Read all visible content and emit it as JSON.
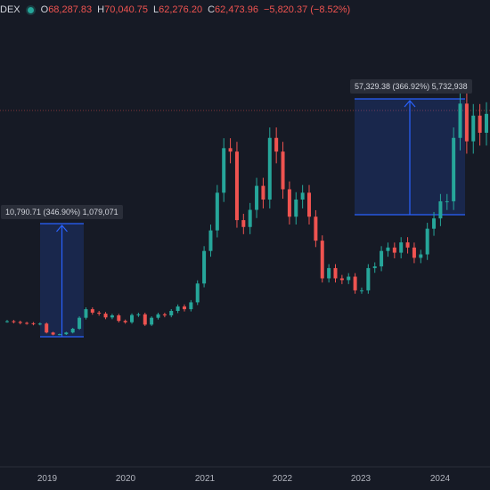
{
  "header": {
    "symbol": "DEX",
    "open_key": "O",
    "open": "68,287.83",
    "high_key": "H",
    "high": "70,040.75",
    "low_key": "L",
    "low": "62,276.20",
    "close_key": "C",
    "close": "62,473.96",
    "change": "−5,820.37 (−8.52%)"
  },
  "measures": [
    {
      "label": "10,790.71 (346.90%) 1,079,071"
    },
    {
      "label": "57,329.38 (366.92%) 5,732,938"
    }
  ],
  "x_axis": {
    "labels": [
      "2019",
      "2020",
      "2021",
      "2022",
      "2023",
      "2024"
    ]
  },
  "colors": {
    "up": "#26a69a",
    "down": "#ef5350",
    "measure": "#2962ff",
    "background": "#161a25"
  },
  "chart_data": {
    "type": "candlestick",
    "x": [
      "2018-06",
      "2018-07",
      "2018-08",
      "2018-09",
      "2018-10",
      "2018-11",
      "2018-12",
      "2019-01",
      "2019-02",
      "2019-03",
      "2019-04",
      "2019-05",
      "2019-06",
      "2019-07",
      "2019-08",
      "2019-09",
      "2019-10",
      "2019-11",
      "2019-12",
      "2020-01",
      "2020-02",
      "2020-03",
      "2020-04",
      "2020-05",
      "2020-06",
      "2020-07",
      "2020-08",
      "2020-09",
      "2020-10",
      "2020-11",
      "2020-12",
      "2021-01",
      "2021-02",
      "2021-03",
      "2021-04",
      "2021-05",
      "2021-06",
      "2021-07",
      "2021-08",
      "2021-09",
      "2021-10",
      "2021-11",
      "2021-12",
      "2022-01",
      "2022-02",
      "2022-03",
      "2022-04",
      "2022-05",
      "2022-06",
      "2022-07",
      "2022-08",
      "2022-09",
      "2022-10",
      "2022-11",
      "2022-12",
      "2023-01",
      "2023-02",
      "2023-03",
      "2023-04",
      "2023-05",
      "2023-06",
      "2023-07",
      "2023-08",
      "2023-09",
      "2023-10",
      "2023-11",
      "2023-12",
      "2024-01",
      "2024-02",
      "2024-03",
      "2024-04",
      "2024-05",
      "2024-06",
      "2024-07"
    ],
    "close": [
      7500,
      7300,
      7000,
      6900,
      6700,
      6800,
      4200,
      3600,
      3700,
      4200,
      5300,
      8500,
      11000,
      10000,
      9700,
      8600,
      9200,
      7600,
      7200,
      9300,
      9500,
      6500,
      8500,
      9500,
      9200,
      10500,
      11800,
      11000,
      13000,
      18500,
      28000,
      34000,
      45000,
      58000,
      57000,
      37000,
      35000,
      40000,
      47000,
      43000,
      61000,
      57000,
      46000,
      38000,
      43000,
      45000,
      38000,
      31000,
      20000,
      23000,
      20000,
      19500,
      20500,
      16500,
      16500,
      23000,
      23500,
      28000,
      29000,
      27500,
      30500,
      29000,
      26000,
      27000,
      34500,
      37500,
      42500,
      42500,
      61000,
      71000,
      60000,
      67500,
      62500,
      68000
    ],
    "y_range_approx": [
      3000,
      72000
    ]
  }
}
